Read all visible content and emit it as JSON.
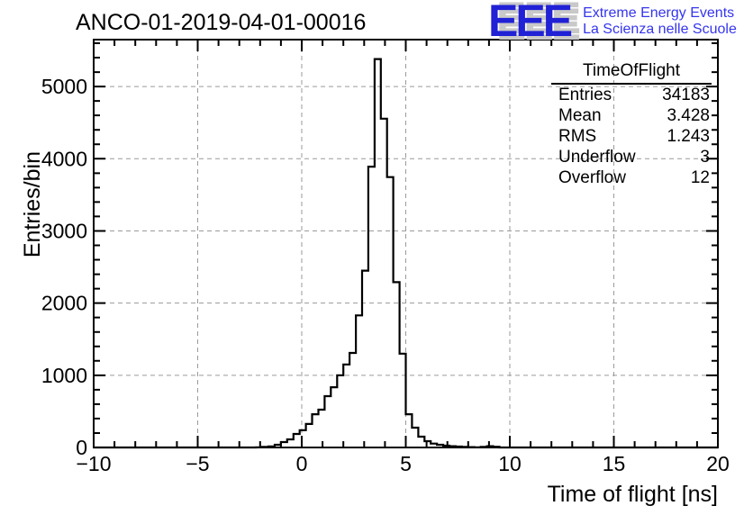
{
  "page": {
    "background": "#ffffff"
  },
  "header": {
    "title": "ANCO-01-2019-04-01-00016",
    "logo": {
      "acronym": "EEE",
      "line1": "Extreme Energy Events",
      "line2": "La Scienza nelle Scuole",
      "acronym_color": "#2121d6",
      "shadow_color": "#c9c9c9",
      "text_color": "#3535ee"
    }
  },
  "stats_box": {
    "title": "TimeOfFlight",
    "rows": [
      {
        "label": "Entries",
        "value": "34183"
      },
      {
        "label": "Mean",
        "value": "3.428"
      },
      {
        "label": "RMS",
        "value": "1.243"
      },
      {
        "label": "Underflow",
        "value": "3"
      },
      {
        "label": "Overflow",
        "value": "12"
      }
    ]
  },
  "chart_data": {
    "type": "bar",
    "subtype": "step-histogram",
    "title": "ANCO-01-2019-04-01-00016",
    "xlabel": "Time of flight [ns]",
    "ylabel": "Entries/bin",
    "xlim": [
      -10,
      20
    ],
    "ylim": [
      0,
      5650
    ],
    "x_major_ticks": [
      -10,
      -5,
      0,
      5,
      10,
      15,
      20
    ],
    "x_tick_labels": [
      "−10",
      "−5",
      "0",
      "5",
      "10",
      "15",
      "20"
    ],
    "x_minor_step": 1,
    "y_major_ticks": [
      0,
      1000,
      2000,
      3000,
      4000,
      5000
    ],
    "y_tick_labels": [
      "0",
      "1000",
      "2000",
      "3000",
      "4000",
      "5000"
    ],
    "y_minor_step": 200,
    "grid": true,
    "legend_position": "none",
    "line_color": "#000000",
    "grid_color": "#9a9a9a",
    "bins": {
      "start": -2.2,
      "width": 0.3,
      "values": [
        3,
        8,
        15,
        37,
        75,
        112,
        187,
        240,
        325,
        460,
        524,
        711,
        835,
        1000,
        1150,
        1310,
        1830,
        2450,
        3890,
        5380,
        4555,
        3745,
        2290,
        1300,
        460,
        275,
        150,
        87,
        54,
        37,
        25,
        18,
        12,
        8,
        5,
        3,
        8,
        18,
        10
      ]
    }
  }
}
